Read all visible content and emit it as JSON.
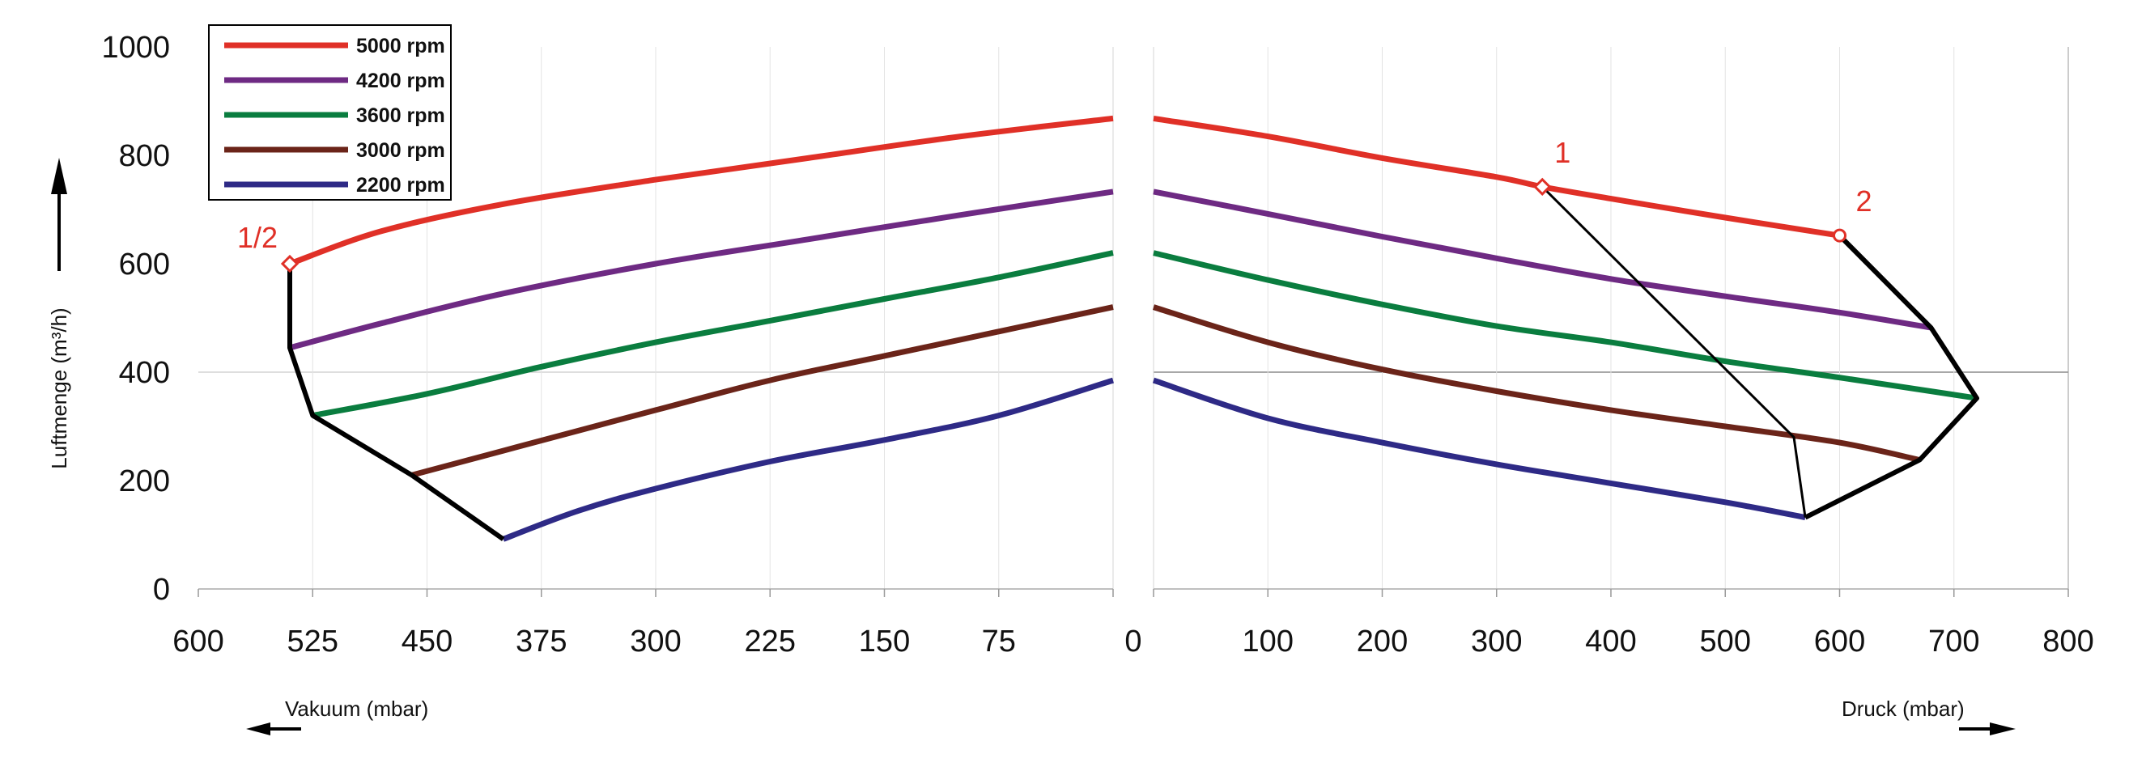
{
  "chart_data": {
    "type": "line",
    "ylabel": "Luftmenge (m³/h)",
    "left_xlabel": "Vakuum (mbar)",
    "right_xlabel": "Druck (mbar)",
    "ylim": [
      0,
      1000
    ],
    "yticks": [
      "0",
      "200",
      "400",
      "600",
      "800",
      "1000"
    ],
    "left_xlim": [
      600,
      0
    ],
    "left_xticks": [
      "600",
      "525",
      "450",
      "375",
      "300",
      "225",
      "150",
      "75"
    ],
    "right_xlim": [
      0,
      800
    ],
    "right_xticks": [
      "0",
      "100",
      "200",
      "300",
      "400",
      "500",
      "600",
      "700",
      "800"
    ],
    "grid": true,
    "legend_position": "top-left",
    "series": [
      {
        "name": "5000 rpm",
        "color": "#e03027",
        "vacuum": {
          "x": [
            540,
            480,
            400,
            300,
            200,
            100,
            0
          ],
          "y": [
            600,
            660,
            710,
            755,
            795,
            835,
            868
          ]
        },
        "pressure": {
          "x": [
            0,
            100,
            200,
            300,
            340,
            400,
            500,
            600
          ],
          "y": [
            868,
            835,
            795,
            760,
            742,
            720,
            685,
            652
          ]
        }
      },
      {
        "name": "4200 rpm",
        "color": "#6e2a83",
        "vacuum": {
          "x": [
            540,
            480,
            400,
            300,
            200,
            100,
            0
          ],
          "y": [
            445,
            490,
            545,
            600,
            645,
            690,
            733
          ]
        },
        "pressure": {
          "x": [
            0,
            100,
            200,
            300,
            400,
            500,
            600,
            680
          ],
          "y": [
            733,
            692,
            650,
            610,
            572,
            540,
            510,
            482
          ]
        }
      },
      {
        "name": "3600 rpm",
        "color": "#0a7d3f",
        "vacuum": {
          "x": [
            525,
            450,
            375,
            300,
            225,
            150,
            75,
            0
          ],
          "y": [
            320,
            360,
            410,
            455,
            495,
            535,
            575,
            620
          ]
        },
        "pressure": {
          "x": [
            0,
            100,
            200,
            300,
            400,
            500,
            600,
            720
          ],
          "y": [
            620,
            570,
            525,
            485,
            455,
            420,
            390,
            352
          ]
        }
      },
      {
        "name": "3000 rpm",
        "color": "#6b2419",
        "vacuum": {
          "x": [
            460,
            400,
            300,
            225,
            150,
            75,
            0
          ],
          "y": [
            210,
            255,
            330,
            385,
            430,
            475,
            520
          ]
        },
        "pressure": {
          "x": [
            0,
            100,
            200,
            300,
            400,
            500,
            600,
            670
          ],
          "y": [
            520,
            455,
            405,
            365,
            330,
            300,
            270,
            238
          ]
        }
      },
      {
        "name": "3000 rpm_dup",
        "color": "#6b2419",
        "hidden": true
      },
      {
        "name": "2200 rpm",
        "color": "#2e2a86",
        "vacuum": {
          "x": [
            400,
            350,
            300,
            225,
            150,
            75,
            0
          ],
          "y": [
            92,
            145,
            185,
            235,
            275,
            320,
            385
          ]
        },
        "pressure": {
          "x": [
            0,
            100,
            200,
            300,
            400,
            500,
            570
          ],
          "y": [
            385,
            315,
            270,
            230,
            195,
            160,
            132
          ]
        }
      }
    ],
    "envelopes": [
      {
        "side": "vacuum",
        "x": [
          540,
          540,
          525,
          460,
          400
        ],
        "y": [
          600,
          445,
          320,
          210,
          92
        ]
      },
      {
        "side": "pressure",
        "x": [
          600,
          680,
          720,
          670,
          570
        ],
        "y": [
          652,
          482,
          352,
          238,
          132
        ]
      },
      {
        "side": "pressure",
        "x": [
          340,
          560,
          570
        ],
        "y": [
          742,
          280,
          132
        ]
      }
    ],
    "markers": [
      {
        "label": "1/2",
        "side": "vacuum",
        "x": 540,
        "y": 600
      },
      {
        "label": "1",
        "side": "pressure",
        "x": 340,
        "y": 742
      },
      {
        "label": "2",
        "side": "pressure",
        "x": 600,
        "y": 652
      }
    ]
  }
}
